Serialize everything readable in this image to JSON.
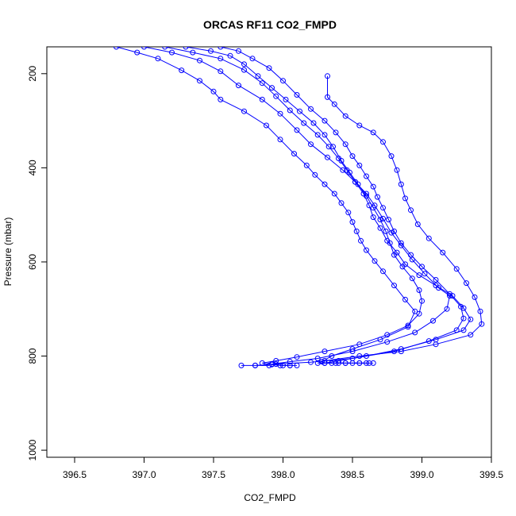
{
  "chart_data": {
    "type": "line",
    "title": "ORCAS RF11 CO2_FMPD",
    "xlabel": "CO2_FMPD",
    "ylabel": "Pressure (mbar)",
    "xlim": [
      396.3,
      399.5
    ],
    "ylim": [
      1015,
      143
    ],
    "y_reversed": true,
    "xticks": [
      396.5,
      397.0,
      397.5,
      398.0,
      398.5,
      399.0,
      399.5
    ],
    "xtick_labels": [
      "396.5",
      "397.0",
      "397.5",
      "398.0",
      "398.5",
      "399.0",
      "399.5"
    ],
    "yticks": [
      200,
      400,
      600,
      800,
      1000
    ],
    "ytick_labels": [
      "200",
      "400",
      "600",
      "800",
      "1000"
    ],
    "grid": false,
    "marker": "open-circle",
    "color": "#0000ff",
    "series": [
      {
        "points": [
          [
            396.8,
            143
          ],
          [
            396.95,
            155
          ],
          [
            397.1,
            168
          ],
          [
            397.27,
            193
          ],
          [
            397.4,
            215
          ],
          [
            397.5,
            238
          ],
          [
            397.55,
            255
          ],
          [
            397.72,
            280
          ],
          [
            397.88,
            310
          ],
          [
            397.98,
            340
          ],
          [
            398.08,
            370
          ],
          [
            398.17,
            395
          ],
          [
            398.23,
            415
          ],
          [
            398.3,
            435
          ],
          [
            398.37,
            455
          ],
          [
            398.42,
            475
          ],
          [
            398.47,
            495
          ],
          [
            398.5,
            515
          ],
          [
            398.53,
            535
          ],
          [
            398.56,
            555
          ],
          [
            398.6,
            575
          ],
          [
            398.66,
            598
          ],
          [
            398.72,
            620
          ],
          [
            398.8,
            650
          ],
          [
            398.88,
            680
          ],
          [
            398.95,
            705
          ],
          [
            398.9,
            738
          ],
          [
            398.7,
            765
          ],
          [
            398.5,
            785
          ],
          [
            398.35,
            800
          ],
          [
            398.28,
            812
          ],
          [
            398.3,
            815
          ],
          [
            398.4,
            815
          ],
          [
            398.5,
            815
          ],
          [
            398.6,
            815
          ],
          [
            398.65,
            815
          ]
        ]
      },
      {
        "points": [
          [
            397.0,
            143
          ],
          [
            397.2,
            155
          ],
          [
            397.4,
            172
          ],
          [
            397.55,
            195
          ],
          [
            397.68,
            225
          ],
          [
            397.85,
            255
          ],
          [
            397.98,
            285
          ],
          [
            398.1,
            320
          ],
          [
            398.2,
            350
          ],
          [
            398.32,
            378
          ],
          [
            398.43,
            405
          ],
          [
            398.52,
            430
          ],
          [
            398.6,
            455
          ],
          [
            398.66,
            480
          ],
          [
            398.72,
            508
          ],
          [
            398.78,
            538
          ],
          [
            398.85,
            565
          ],
          [
            398.93,
            595
          ],
          [
            399.02,
            625
          ],
          [
            399.12,
            655
          ],
          [
            399.2,
            672
          ],
          [
            399.18,
            700
          ],
          [
            399.08,
            725
          ],
          [
            398.95,
            750
          ],
          [
            398.75,
            770
          ],
          [
            398.5,
            790
          ],
          [
            398.25,
            805
          ],
          [
            398.05,
            812
          ],
          [
            397.92,
            817
          ],
          [
            398.0,
            820
          ],
          [
            398.05,
            820
          ],
          [
            398.1,
            820
          ]
        ]
      },
      {
        "points": [
          [
            397.15,
            143
          ],
          [
            397.35,
            155
          ],
          [
            397.55,
            168
          ],
          [
            397.72,
            192
          ],
          [
            397.85,
            220
          ],
          [
            397.95,
            248
          ],
          [
            398.05,
            278
          ],
          [
            398.15,
            305
          ],
          [
            398.25,
            330
          ],
          [
            398.33,
            355
          ],
          [
            398.4,
            380
          ],
          [
            398.46,
            405
          ],
          [
            398.52,
            430
          ],
          [
            398.58,
            455
          ],
          [
            398.62,
            480
          ],
          [
            398.65,
            505
          ],
          [
            398.7,
            528
          ],
          [
            398.75,
            555
          ],
          [
            398.82,
            580
          ],
          [
            398.88,
            605
          ],
          [
            398.98,
            628
          ],
          [
            399.1,
            650
          ],
          [
            399.22,
            672
          ],
          [
            399.3,
            698
          ],
          [
            399.35,
            722
          ],
          [
            399.3,
            745
          ],
          [
            399.1,
            765
          ],
          [
            398.85,
            785
          ],
          [
            398.6,
            800
          ],
          [
            398.4,
            810
          ],
          [
            398.3,
            815
          ],
          [
            398.38,
            815
          ],
          [
            398.45,
            815
          ],
          [
            398.55,
            815
          ],
          [
            398.62,
            815
          ]
        ]
      },
      {
        "points": [
          [
            397.3,
            143
          ],
          [
            397.48,
            152
          ],
          [
            397.62,
            162
          ],
          [
            397.72,
            180
          ],
          [
            397.82,
            205
          ],
          [
            397.92,
            230
          ],
          [
            398.02,
            255
          ],
          [
            398.12,
            280
          ],
          [
            398.22,
            305
          ],
          [
            398.3,
            330
          ],
          [
            398.36,
            355
          ],
          [
            398.42,
            385
          ],
          [
            398.48,
            410
          ],
          [
            398.54,
            435
          ],
          [
            398.6,
            460
          ],
          [
            398.65,
            485
          ],
          [
            398.7,
            510
          ],
          [
            398.74,
            535
          ],
          [
            398.77,
            560
          ],
          [
            398.8,
            585
          ],
          [
            398.86,
            610
          ],
          [
            398.93,
            635
          ],
          [
            398.98,
            660
          ],
          [
            399.0,
            683
          ],
          [
            398.98,
            710
          ],
          [
            398.9,
            735
          ],
          [
            398.75,
            755
          ],
          [
            398.55,
            775
          ],
          [
            398.3,
            790
          ],
          [
            398.1,
            802
          ],
          [
            397.95,
            810
          ],
          [
            397.85,
            815
          ],
          [
            397.92,
            818
          ],
          [
            397.98,
            820
          ],
          [
            398.05,
            820
          ]
        ]
      },
      {
        "points": [
          [
            397.55,
            143
          ],
          [
            397.68,
            152
          ],
          [
            397.78,
            168
          ],
          [
            397.9,
            188
          ],
          [
            398.0,
            215
          ],
          [
            398.1,
            245
          ],
          [
            398.2,
            275
          ],
          [
            398.3,
            300
          ],
          [
            398.38,
            325
          ],
          [
            398.45,
            350
          ],
          [
            398.5,
            375
          ],
          [
            398.55,
            395
          ],
          [
            398.6,
            418
          ],
          [
            398.65,
            440
          ],
          [
            398.68,
            462
          ],
          [
            398.72,
            485
          ],
          [
            398.76,
            510
          ],
          [
            398.8,
            535
          ],
          [
            398.85,
            560
          ],
          [
            398.92,
            585
          ],
          [
            399.0,
            610
          ],
          [
            399.1,
            638
          ],
          [
            399.2,
            668
          ],
          [
            399.28,
            695
          ],
          [
            399.3,
            720
          ],
          [
            399.25,
            745
          ],
          [
            399.05,
            768
          ],
          [
            398.8,
            790
          ],
          [
            398.5,
            805
          ],
          [
            398.2,
            813
          ],
          [
            397.95,
            817
          ],
          [
            397.8,
            820
          ],
          [
            397.7,
            820
          ],
          [
            397.8,
            820
          ],
          [
            397.9,
            820
          ]
        ]
      },
      {
        "points": [
          [
            398.32,
            205
          ],
          [
            398.32,
            250
          ],
          [
            398.37,
            265
          ],
          [
            398.45,
            290
          ],
          [
            398.55,
            310
          ],
          [
            398.65,
            325
          ],
          [
            398.72,
            345
          ],
          [
            398.78,
            375
          ],
          [
            398.82,
            405
          ],
          [
            398.85,
            435
          ],
          [
            398.88,
            465
          ],
          [
            398.92,
            490
          ],
          [
            398.97,
            520
          ],
          [
            399.05,
            550
          ],
          [
            399.15,
            580
          ],
          [
            399.25,
            615
          ],
          [
            399.32,
            645
          ],
          [
            399.38,
            675
          ],
          [
            399.42,
            705
          ],
          [
            399.43,
            732
          ],
          [
            399.35,
            755
          ],
          [
            399.1,
            775
          ],
          [
            398.85,
            790
          ],
          [
            398.55,
            800
          ],
          [
            398.3,
            810
          ],
          [
            398.25,
            815
          ],
          [
            398.35,
            815
          ],
          [
            398.45,
            815
          ],
          [
            398.55,
            815
          ]
        ]
      }
    ]
  }
}
